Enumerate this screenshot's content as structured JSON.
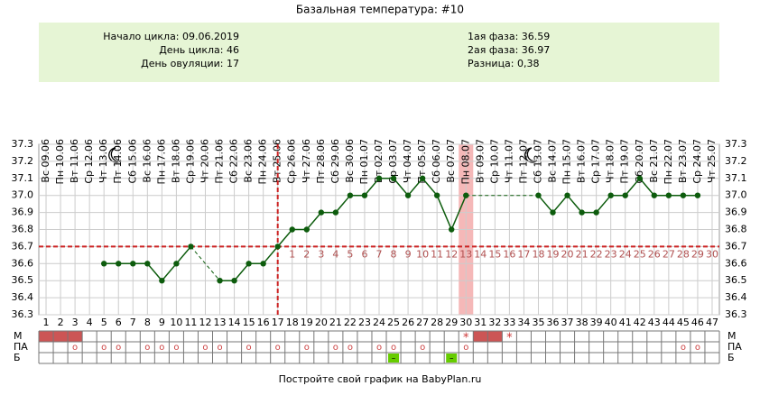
{
  "chart_data": {
    "type": "line",
    "title": "Базальная температура: #10",
    "info_left": [
      "Начало цикла: 09.06.2019",
      "День цикла: 46",
      "День овуляции: 17"
    ],
    "info_right": [
      "1ая фаза: 36.59",
      "2ая фаза: 36.97",
      "Разница: 0,38"
    ],
    "categories": [
      "Вс 09.06",
      "Пн 10.06",
      "Вт 11.06",
      "Ср 12.06",
      "Чт 13.06",
      "Пт 14.06",
      "Сб 15.06",
      "Вс 16.06",
      "Пн 17.06",
      "Вт 18.06",
      "Ср 19.06",
      "Чт 20.06",
      "Пт 21.06",
      "Сб 22.06",
      "Вс 23.06",
      "Пн 24.06",
      "Вт 25.06",
      "Ср 26.06",
      "Чт 27.06",
      "Пт 28.06",
      "Сб 29.06",
      "Вс 30.06",
      "Пн 01.07",
      "Вт 02.07",
      "Ср 03.07",
      "Чт 04.07",
      "Пт 05.07",
      "Сб 06.07",
      "Вс 07.07",
      "Пн 08.07",
      "Вт 09.07",
      "Ср 10.07",
      "Чт 11.07",
      "Пт 12.07",
      "Сб 13.07",
      "Вс 14.07",
      "Пн 15.07",
      "Вт 16.07",
      "Ср 17.07",
      "Чт 18.07",
      "Пт 19.07",
      "Сб 20.07",
      "Вс 21.07",
      "Пн 22.07",
      "Вт 23.07",
      "Ср 24.07",
      "Чт 25.07"
    ],
    "day_numbers": [
      1,
      2,
      3,
      4,
      5,
      6,
      7,
      8,
      9,
      10,
      11,
      12,
      13,
      14,
      15,
      16,
      17,
      18,
      19,
      20,
      21,
      22,
      23,
      24,
      25,
      26,
      27,
      28,
      29,
      30,
      31,
      32,
      33,
      34,
      35,
      36,
      37,
      38,
      39,
      40,
      41,
      42,
      43,
      44,
      45,
      46,
      47
    ],
    "values": [
      null,
      null,
      null,
      null,
      36.6,
      36.6,
      36.6,
      36.6,
      36.5,
      36.6,
      36.7,
      null,
      36.5,
      36.5,
      36.6,
      36.6,
      36.7,
      36.8,
      36.8,
      36.9,
      36.9,
      37.0,
      37.0,
      37.1,
      37.1,
      37.0,
      37.1,
      37.0,
      36.8,
      37.0,
      null,
      null,
      null,
      null,
      37.0,
      36.9,
      37.0,
      36.9,
      36.9,
      37.0,
      37.0,
      37.1,
      37.0,
      37.0,
      37.0,
      37.0,
      null
    ],
    "color": "#0d5c0d",
    "ylim": [
      36.3,
      37.3
    ],
    "yticks": [
      36.3,
      36.4,
      36.5,
      36.6,
      {
        "value": 36.7,
        "label": "36.7"
      },
      36.8,
      36.9,
      {
        "value": 37.0,
        "label": "37.0"
      },
      37.1,
      37.2,
      37.3
    ],
    "grid": true,
    "coverline": 36.7,
    "ovulation_day": 17,
    "highlight_day": 30,
    "luteal_start_day": 18,
    "luteal_numbers": [
      1,
      2,
      3,
      4,
      5,
      6,
      7,
      8,
      9,
      10,
      11,
      12,
      13,
      14,
      15,
      16,
      17,
      18,
      19,
      20,
      21,
      22,
      23,
      24,
      25,
      26,
      27,
      28,
      29,
      30
    ],
    "m_row": {
      "label": "М",
      "filled_days": [
        1,
        2,
        3,
        31,
        32
      ],
      "star_days": [
        30,
        33
      ],
      "star": "*"
    },
    "pa_row": {
      "label": "ПА",
      "days": [
        3,
        5,
        6,
        8,
        9,
        10,
        12,
        13,
        15,
        17,
        19,
        21,
        22,
        24,
        25,
        27,
        30,
        45,
        46
      ],
      "mark": "o"
    },
    "b_row": {
      "label": "Б",
      "days": [
        25,
        29
      ],
      "mark": "–",
      "color": "#66cc00"
    },
    "footer": "Постройте свой график на BabyPlan.ru"
  }
}
